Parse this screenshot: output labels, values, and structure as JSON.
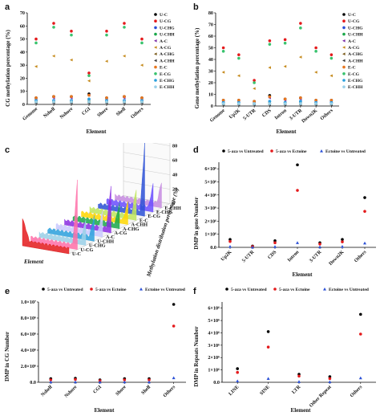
{
  "panels": {
    "a": {
      "label": "a",
      "ylabel": "CG methylation percentage (%)",
      "xlabel": "Element"
    },
    "b": {
      "label": "b",
      "ylabel": "Gene methylation percentage (%)",
      "xlabel": "Element"
    },
    "c": {
      "label": "c",
      "zlabel": "Methylation distribution percentage (%)",
      "xlabel": "Element",
      "ztick_labels": [
        "0",
        "20",
        "40",
        "60",
        "80",
        "100"
      ]
    },
    "d": {
      "label": "d",
      "ylabel": "DMP in gene Number",
      "xlabel": "Element"
    },
    "e": {
      "label": "e",
      "ylabel": "DMP in CG Number",
      "xlabel": "Element"
    },
    "f": {
      "label": "f",
      "ylabel": "DMP in Repeats Number",
      "xlabel": "Element"
    }
  },
  "colors": {
    "U-C": "#000000",
    "U-CG": "#e41a1c",
    "U-CHG": "#2b50d6",
    "U-CHH": "#1aa84a",
    "A-C": "#7b2fa8",
    "A-CG": "#c58a1c",
    "A-CHG": "#7a5a1a",
    "A-CHH": "#3d3d3d",
    "E-C": "#e8761e",
    "E-CG": "#39c36e",
    "E-CHG": "#2aa0dd",
    "E-CHH": "#9ad0e8",
    "untreated_aza": "#000000",
    "aza_ectoine": "#e41a1c",
    "ectoine_untreated": "#2b50d6"
  },
  "chart_data": [
    {
      "type": "scatter",
      "panel": "a",
      "categories": [
        "Genome",
        "Nshelf",
        "Nshore",
        "CGI",
        "Shore",
        "Shelf",
        "Others"
      ],
      "ylabel": "CG methylation percentage (%)",
      "xlabel": "Element",
      "ylim": [
        0,
        70
      ],
      "yticks": [
        0,
        10,
        20,
        30,
        40,
        50,
        60,
        70
      ],
      "legend_position": "right",
      "series": [
        {
          "name": "U-C",
          "values": [
            5,
            6,
            6,
            8,
            5,
            6,
            5
          ]
        },
        {
          "name": "U-CG",
          "values": [
            50,
            62,
            56,
            24,
            56,
            62,
            50
          ]
        },
        {
          "name": "U-CHG",
          "values": [
            3,
            3,
            3,
            4,
            3,
            3,
            3
          ]
        },
        {
          "name": "U-CHH",
          "values": [
            2,
            2,
            2,
            2,
            2,
            2,
            2
          ]
        },
        {
          "name": "A-C",
          "values": [
            4,
            5,
            5,
            7,
            4,
            5,
            4
          ]
        },
        {
          "name": "A-CG",
          "values": [
            29,
            37,
            34,
            18,
            33,
            37,
            30
          ]
        },
        {
          "name": "A-CHG",
          "values": [
            2,
            2,
            2,
            3,
            2,
            2,
            2
          ]
        },
        {
          "name": "A-CHH",
          "values": [
            1,
            1,
            1,
            1,
            1,
            1,
            1
          ]
        },
        {
          "name": "E-C",
          "values": [
            5,
            6,
            6,
            7,
            5,
            6,
            5
          ]
        },
        {
          "name": "E-CG",
          "values": [
            47,
            59,
            53,
            22,
            53,
            59,
            47
          ]
        },
        {
          "name": "E-CHG",
          "values": [
            3,
            3,
            3,
            4,
            3,
            3,
            3
          ]
        },
        {
          "name": "E-CHH",
          "values": [
            2,
            2,
            2,
            2,
            2,
            2,
            2
          ]
        }
      ]
    },
    {
      "type": "scatter",
      "panel": "b",
      "categories": [
        "Genome",
        "Up2K",
        "5-UTR",
        "CDS",
        "Intron",
        "3-UTR",
        "Down2K",
        "Others"
      ],
      "ylabel": "Gene methylation percentage (%)",
      "xlabel": "Element",
      "ylim": [
        0,
        80
      ],
      "yticks": [
        0,
        10,
        20,
        30,
        40,
        50,
        60,
        70,
        80
      ],
      "legend_position": "right",
      "series": [
        {
          "name": "U-C",
          "values": [
            5,
            5,
            4,
            9,
            6,
            7,
            5,
            5
          ]
        },
        {
          "name": "U-CG",
          "values": [
            50,
            44,
            22,
            56,
            57,
            71,
            50,
            44
          ]
        },
        {
          "name": "U-CHG",
          "values": [
            3,
            3,
            2,
            4,
            3,
            4,
            3,
            3
          ]
        },
        {
          "name": "U-CHH",
          "values": [
            2,
            2,
            2,
            2,
            2,
            2,
            2,
            2
          ]
        },
        {
          "name": "A-C",
          "values": [
            4,
            4,
            3,
            7,
            5,
            6,
            4,
            4
          ]
        },
        {
          "name": "A-CG",
          "values": [
            29,
            26,
            15,
            33,
            34,
            42,
            29,
            26
          ]
        },
        {
          "name": "A-CHG",
          "values": [
            2,
            2,
            2,
            3,
            2,
            3,
            2,
            2
          ]
        },
        {
          "name": "A-CHH",
          "values": [
            1,
            1,
            1,
            1,
            1,
            1,
            1,
            1
          ]
        },
        {
          "name": "E-C",
          "values": [
            5,
            5,
            4,
            8,
            6,
            7,
            5,
            5
          ]
        },
        {
          "name": "E-CG",
          "values": [
            47,
            41,
            20,
            53,
            54,
            67,
            47,
            41
          ]
        },
        {
          "name": "E-CHG",
          "values": [
            3,
            3,
            2,
            4,
            3,
            4,
            3,
            3
          ]
        },
        {
          "name": "E-CHH",
          "values": [
            2,
            2,
            2,
            2,
            2,
            2,
            2,
            2
          ]
        }
      ]
    },
    {
      "type": "area",
      "panel": "c",
      "zlabel": "Methylation distribution percentage (%)",
      "xlabel": "Element",
      "zlim": [
        0,
        100
      ],
      "row_labels": [
        "U-C",
        "U-CG",
        "U-CHG",
        "U-CHH",
        "A-C",
        "A-CG",
        "A-CHG",
        "A-CHH",
        "E-C",
        "E-CG",
        "E-CHG",
        "E-CHH"
      ],
      "peaks": [
        35,
        90,
        30,
        28,
        30,
        60,
        28,
        25,
        38,
        95,
        32,
        30
      ]
    },
    {
      "type": "scatter",
      "panel": "d",
      "categories": [
        "Up2K",
        "5-UTR",
        "CDS",
        "Intron",
        "3-UTR",
        "Down2K",
        "Others"
      ],
      "ylabel": "DMP in gene Number",
      "xlabel": "Element",
      "ylim": [
        0,
        6500000
      ],
      "yticks": [
        0,
        1000000,
        2000000,
        3000000,
        4000000,
        5000000,
        6000000
      ],
      "ytick_labels": [
        "0.0",
        "1×10⁶",
        "2×10⁶",
        "3×10⁶",
        "4×10⁶",
        "5×10⁶",
        "6×10⁶"
      ],
      "legend_position": "top",
      "series": [
        {
          "name": "5-aza vs Untreated",
          "values": [
            600000,
            100000,
            500000,
            6300000,
            350000,
            600000,
            3800000
          ]
        },
        {
          "name": "5-aza vs Ectoine",
          "values": [
            450000,
            60000,
            350000,
            4350000,
            250000,
            420000,
            2750000
          ]
        },
        {
          "name": "Ectoine vs Untreated",
          "values": [
            60000,
            10000,
            50000,
            350000,
            30000,
            60000,
            320000
          ]
        }
      ]
    },
    {
      "type": "scatter",
      "panel": "e",
      "categories": [
        "Nshelf",
        "Nshore",
        "CGI",
        "Shore",
        "Shelf",
        "Others"
      ],
      "ylabel": "DMP in CG Number",
      "xlabel": "Element",
      "ylim": [
        0,
        10000000
      ],
      "yticks": [
        0,
        2000000,
        4000000,
        6000000,
        8000000,
        10000000
      ],
      "ytick_labels": [
        "0.0",
        "2.0×10⁶",
        "4.0×10⁶",
        "6.0×10⁶",
        "8.0×10⁶",
        "1.0×10⁷"
      ],
      "legend_position": "top",
      "series": [
        {
          "name": "5-aza vs Untreated",
          "values": [
            450000,
            500000,
            300000,
            450000,
            450000,
            9700000
          ]
        },
        {
          "name": "5-aza vs Ectoine",
          "values": [
            300000,
            350000,
            200000,
            300000,
            300000,
            7000000
          ]
        },
        {
          "name": "Ectoine vs Untreated",
          "values": [
            30000,
            40000,
            20000,
            30000,
            30000,
            550000
          ]
        }
      ]
    },
    {
      "type": "scatter",
      "panel": "f",
      "categories": [
        "LINE",
        "SINE",
        "LTR",
        "Other Repeat",
        "Others"
      ],
      "ylabel": "DMP in Repeats Number",
      "xlabel": "Element",
      "ylim": [
        0,
        6500000
      ],
      "yticks": [
        0,
        1000000,
        2000000,
        3000000,
        4000000,
        5000000,
        6000000
      ],
      "ytick_labels": [
        "0.0",
        "1×10⁶",
        "2×10⁶",
        "3×10⁶",
        "4×10⁶",
        "5×10⁶",
        "6×10⁶"
      ],
      "legend_position": "top",
      "series": [
        {
          "name": "5-aza vs Untreated",
          "values": [
            1100000,
            4100000,
            650000,
            450000,
            5500000
          ]
        },
        {
          "name": "5-aza vs Ectoine",
          "values": [
            800000,
            2850000,
            500000,
            300000,
            3900000
          ]
        },
        {
          "name": "Ectoine vs Untreated",
          "values": [
            100000,
            300000,
            50000,
            30000,
            350000
          ]
        }
      ]
    }
  ]
}
